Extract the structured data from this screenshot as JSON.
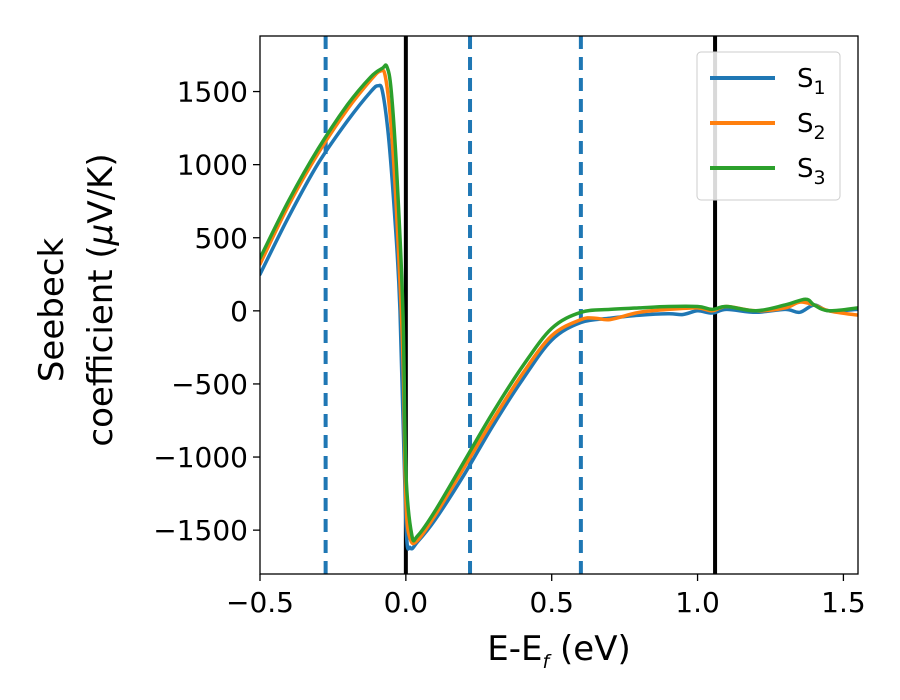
{
  "chart_data": {
    "type": "line",
    "xlabel": {
      "main": "E-E",
      "sub": "f",
      "unit": " (eV)"
    },
    "ylabel": {
      "line1": "Seebeck",
      "line2_pre": "coefficient  (",
      "line2_mu": "μ",
      "line2_post": "V/K)"
    },
    "xlim": [
      -0.5,
      1.55
    ],
    "ylim": [
      -1800,
      1880
    ],
    "xticks": [
      -0.5,
      0.0,
      0.5,
      1.0,
      1.5
    ],
    "xtick_labels": [
      "−0.5",
      "0.0",
      "0.5",
      "1.0",
      "1.5"
    ],
    "yticks": [
      -1500,
      -1000,
      -500,
      0,
      500,
      1000,
      1500
    ],
    "ytick_labels": [
      "−1500",
      "−1000",
      "−500",
      "0",
      "500",
      "1000",
      "1500"
    ],
    "grid": false,
    "legend_position": "top-right",
    "vlines": [
      {
        "x": -0.275,
        "style": "dashed",
        "color": "#1f77b4"
      },
      {
        "x": 0.0,
        "style": "solid",
        "color": "#000000"
      },
      {
        "x": 0.22,
        "style": "dashed",
        "color": "#1f77b4"
      },
      {
        "x": 0.6,
        "style": "dashed",
        "color": "#1f77b4"
      },
      {
        "x": 1.06,
        "style": "solid",
        "color": "#000000"
      }
    ],
    "series": [
      {
        "name": "S",
        "sub": "1",
        "color": "#1f77b4",
        "points": [
          [
            -0.5,
            250
          ],
          [
            -0.4,
            650
          ],
          [
            -0.3,
            1010
          ],
          [
            -0.2,
            1300
          ],
          [
            -0.12,
            1500
          ],
          [
            -0.095,
            1540
          ],
          [
            -0.08,
            1500
          ],
          [
            -0.06,
            1200
          ],
          [
            -0.04,
            700
          ],
          [
            -0.02,
            0
          ],
          [
            0.0,
            -1450
          ],
          [
            0.015,
            -1620
          ],
          [
            0.04,
            -1580
          ],
          [
            0.1,
            -1430
          ],
          [
            0.2,
            -1120
          ],
          [
            0.3,
            -780
          ],
          [
            0.4,
            -470
          ],
          [
            0.5,
            -200
          ],
          [
            0.6,
            -80
          ],
          [
            0.7,
            -50
          ],
          [
            0.8,
            -30
          ],
          [
            0.9,
            -20
          ],
          [
            0.95,
            -25
          ],
          [
            1.0,
            0
          ],
          [
            1.05,
            -15
          ],
          [
            1.1,
            10
          ],
          [
            1.2,
            -10
          ],
          [
            1.3,
            10
          ],
          [
            1.35,
            -10
          ],
          [
            1.4,
            40
          ],
          [
            1.45,
            0
          ],
          [
            1.55,
            10
          ]
        ]
      },
      {
        "name": "S",
        "sub": "2",
        "color": "#ff7f0e",
        "points": [
          [
            -0.5,
            320
          ],
          [
            -0.4,
            730
          ],
          [
            -0.3,
            1080
          ],
          [
            -0.2,
            1380
          ],
          [
            -0.12,
            1580
          ],
          [
            -0.088,
            1640
          ],
          [
            -0.07,
            1600
          ],
          [
            -0.05,
            1250
          ],
          [
            -0.03,
            600
          ],
          [
            -0.01,
            -300
          ],
          [
            0.0,
            -1300
          ],
          [
            0.015,
            -1560
          ],
          [
            0.04,
            -1570
          ],
          [
            0.1,
            -1400
          ],
          [
            0.2,
            -1070
          ],
          [
            0.3,
            -740
          ],
          [
            0.4,
            -430
          ],
          [
            0.5,
            -170
          ],
          [
            0.6,
            -60
          ],
          [
            0.65,
            -50
          ],
          [
            0.7,
            -60
          ],
          [
            0.8,
            -10
          ],
          [
            0.9,
            10
          ],
          [
            1.0,
            20
          ],
          [
            1.05,
            0
          ],
          [
            1.1,
            30
          ],
          [
            1.2,
            0
          ],
          [
            1.3,
            20
          ],
          [
            1.35,
            60
          ],
          [
            1.4,
            40
          ],
          [
            1.45,
            0
          ],
          [
            1.55,
            -30
          ]
        ]
      },
      {
        "name": "S",
        "sub": "3",
        "color": "#2ca02c",
        "points": [
          [
            -0.5,
            360
          ],
          [
            -0.4,
            760
          ],
          [
            -0.3,
            1110
          ],
          [
            -0.2,
            1410
          ],
          [
            -0.12,
            1600
          ],
          [
            -0.08,
            1660
          ],
          [
            -0.065,
            1670
          ],
          [
            -0.05,
            1500
          ],
          [
            -0.03,
            900
          ],
          [
            -0.01,
            0
          ],
          [
            0.0,
            -1100
          ],
          [
            0.02,
            -1530
          ],
          [
            0.04,
            -1540
          ],
          [
            0.1,
            -1370
          ],
          [
            0.2,
            -1030
          ],
          [
            0.3,
            -690
          ],
          [
            0.4,
            -380
          ],
          [
            0.5,
            -120
          ],
          [
            0.6,
            -10
          ],
          [
            0.7,
            10
          ],
          [
            0.8,
            20
          ],
          [
            0.9,
            30
          ],
          [
            1.0,
            30
          ],
          [
            1.05,
            10
          ],
          [
            1.1,
            30
          ],
          [
            1.2,
            0
          ],
          [
            1.3,
            40
          ],
          [
            1.37,
            80
          ],
          [
            1.4,
            40
          ],
          [
            1.45,
            0
          ],
          [
            1.55,
            20
          ]
        ]
      }
    ]
  }
}
